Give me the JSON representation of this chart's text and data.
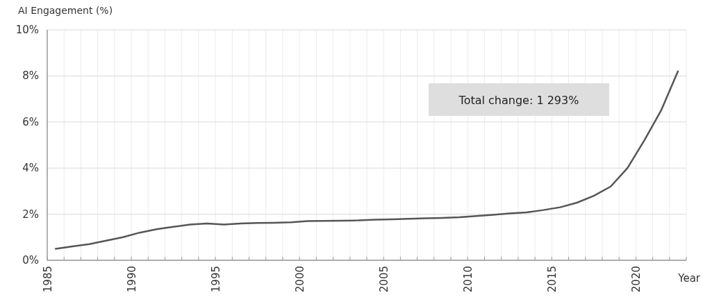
{
  "chart_data": {
    "type": "line",
    "ylabel": "AI Engagement (%)",
    "xlabel": "Year",
    "x": [
      1985.5,
      1986.5,
      1987.5,
      1988.5,
      1989.5,
      1990.5,
      1991.5,
      1992.5,
      1993.5,
      1994.5,
      1995.5,
      1996.5,
      1997.5,
      1998.5,
      1999.5,
      2000.5,
      2001.5,
      2002.5,
      2003.5,
      2004.5,
      2005.5,
      2006.5,
      2007.5,
      2008.5,
      2009.5,
      2010.5,
      2011.5,
      2012.5,
      2013.5,
      2014.5,
      2015.5,
      2016.5,
      2017.5,
      2018.5,
      2019.5,
      2020.5,
      2021.5,
      2022.5
    ],
    "series": [
      {
        "color": "#555555",
        "values": [
          0.5,
          0.6,
          0.7,
          0.85,
          1.0,
          1.2,
          1.35,
          1.45,
          1.55,
          1.6,
          1.55,
          1.6,
          1.62,
          1.63,
          1.65,
          1.7,
          1.71,
          1.72,
          1.73,
          1.76,
          1.78,
          1.8,
          1.82,
          1.84,
          1.87,
          1.92,
          1.97,
          2.03,
          2.08,
          2.18,
          2.3,
          2.5,
          2.8,
          3.2,
          4.0,
          5.2,
          6.5,
          8.2
        ]
      }
    ],
    "xlim": [
      1985,
      2023
    ],
    "xticks": [
      1985,
      {
        "value": 1986,
        "label": null
      },
      {
        "value": 1987,
        "label": null
      },
      {
        "value": 1988,
        "label": null
      },
      {
        "value": 1989,
        "label": null
      },
      1990,
      {
        "value": 1991,
        "label": null
      },
      {
        "value": 1992,
        "label": null
      },
      {
        "value": 1993,
        "label": null
      },
      {
        "value": 1994,
        "label": null
      },
      1995,
      {
        "value": 1996,
        "label": null
      },
      {
        "value": 1997,
        "label": null
      },
      {
        "value": 1998,
        "label": null
      },
      {
        "value": 1999,
        "label": null
      },
      2000,
      {
        "value": 2001,
        "label": null
      },
      {
        "value": 2002,
        "label": null
      },
      {
        "value": 2003,
        "label": null
      },
      {
        "value": 2004,
        "label": null
      },
      2005,
      {
        "value": 2006,
        "label": null
      },
      {
        "value": 2007,
        "label": null
      },
      {
        "value": 2008,
        "label": null
      },
      {
        "value": 2009,
        "label": null
      },
      2010,
      {
        "value": 2011,
        "label": null
      },
      {
        "value": 2012,
        "label": null
      },
      {
        "value": 2013,
        "label": null
      },
      {
        "value": 2014,
        "label": null
      },
      2015,
      {
        "value": 2016,
        "label": null
      },
      {
        "value": 2017,
        "label": null
      },
      {
        "value": 2018,
        "label": null
      },
      {
        "value": 2019,
        "label": null
      },
      2020,
      {
        "value": 2021,
        "label": null
      },
      {
        "value": 2022,
        "label": null
      },
      {
        "value": 2023,
        "label": null
      }
    ],
    "ylim": [
      0,
      10
    ],
    "yticks": [
      {
        "value": 0,
        "label": "0%"
      },
      {
        "value": 2,
        "label": "2%"
      },
      {
        "value": 4,
        "label": "4%"
      },
      {
        "value": 6,
        "label": "6%"
      },
      {
        "value": 8,
        "label": "8%"
      },
      {
        "value": 10,
        "label": "10%"
      }
    ],
    "grid": true,
    "line_style": "solid",
    "annotations": [
      "Total change: 1 293%"
    ]
  }
}
